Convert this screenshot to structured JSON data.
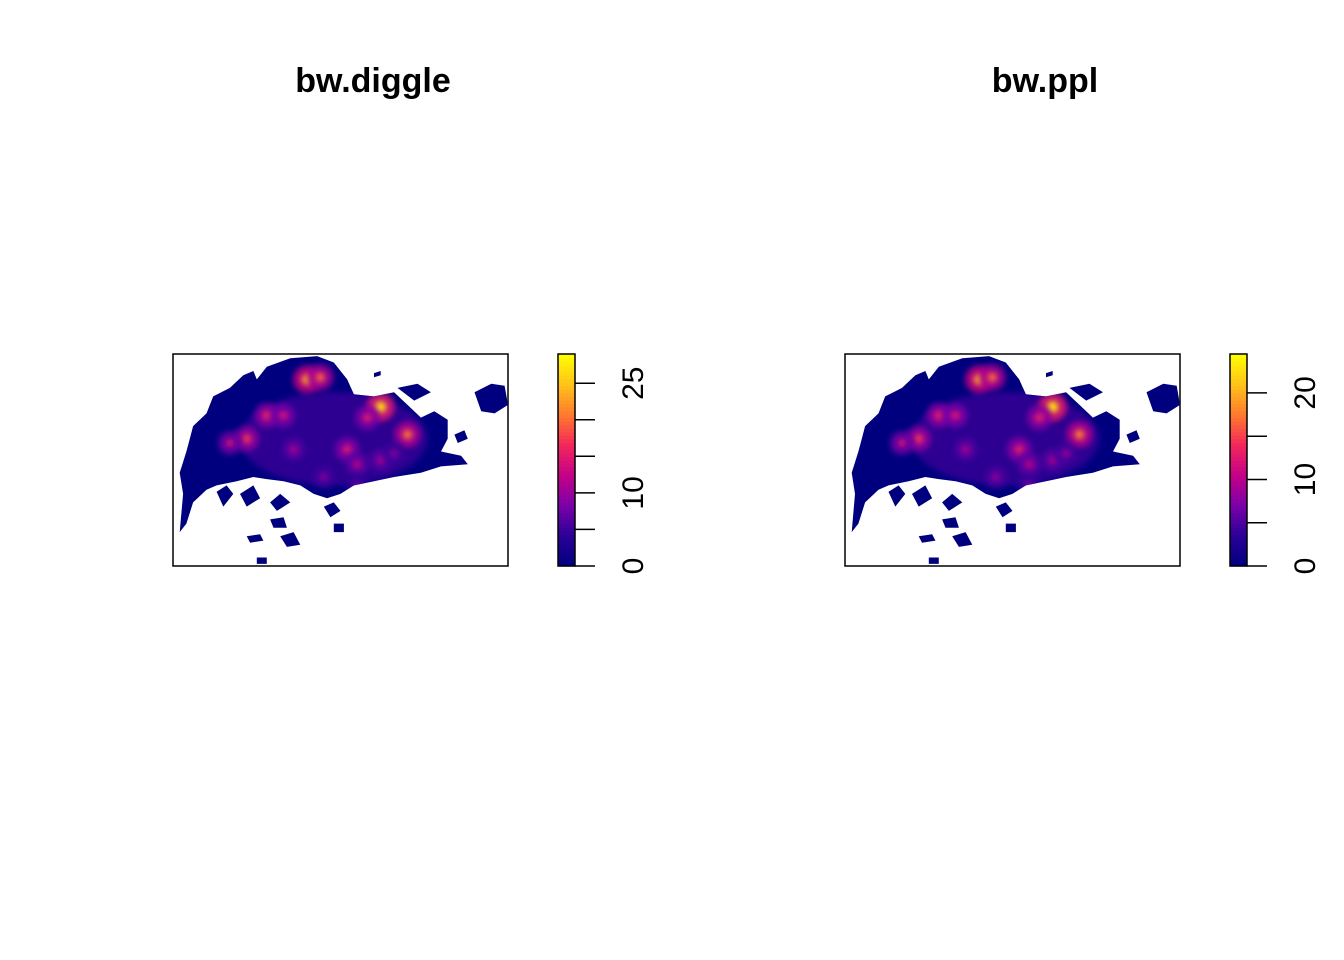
{
  "chart_data": [
    {
      "type": "heatmap",
      "title": "bw.diggle",
      "xlabel": "",
      "ylabel": "",
      "colorbar": {
        "range": [
          0,
          30
        ],
        "major_ticks": [
          0,
          10,
          25
        ],
        "minor_ticks": [
          0,
          5,
          10,
          15,
          20,
          25,
          30
        ],
        "colors": [
          "#00007f",
          "#2a0096",
          "#7a00a8",
          "#c40088",
          "#f3275c",
          "#ff7a2e",
          "#ffc21a",
          "#ffff00"
        ]
      },
      "hotspots": [
        {
          "x": 0.4,
          "y": 0.12,
          "value": 24
        },
        {
          "x": 0.44,
          "y": 0.11,
          "value": 20
        },
        {
          "x": 0.62,
          "y": 0.25,
          "value": 27
        },
        {
          "x": 0.58,
          "y": 0.3,
          "value": 16
        },
        {
          "x": 0.7,
          "y": 0.38,
          "value": 21
        },
        {
          "x": 0.28,
          "y": 0.29,
          "value": 17
        },
        {
          "x": 0.33,
          "y": 0.29,
          "value": 15
        },
        {
          "x": 0.22,
          "y": 0.4,
          "value": 18
        },
        {
          "x": 0.17,
          "y": 0.42,
          "value": 14
        },
        {
          "x": 0.36,
          "y": 0.45,
          "value": 12
        },
        {
          "x": 0.52,
          "y": 0.45,
          "value": 16
        },
        {
          "x": 0.55,
          "y": 0.52,
          "value": 13
        },
        {
          "x": 0.62,
          "y": 0.5,
          "value": 12
        },
        {
          "x": 0.45,
          "y": 0.58,
          "value": 10
        },
        {
          "x": 0.55,
          "y": 0.62,
          "value": 9
        },
        {
          "x": 0.66,
          "y": 0.47,
          "value": 10
        }
      ]
    },
    {
      "type": "heatmap",
      "title": "bw.ppl",
      "xlabel": "",
      "ylabel": "",
      "colorbar": {
        "range": [
          0,
          25
        ],
        "major_ticks": [
          0,
          10,
          20
        ],
        "minor_ticks": [
          0,
          5,
          10,
          15,
          20,
          25
        ],
        "colors": [
          "#00007f",
          "#2a0096",
          "#7a00a8",
          "#c40088",
          "#f3275c",
          "#ff7a2e",
          "#ffc21a",
          "#ffff00"
        ]
      },
      "hotspots": [
        {
          "x": 0.4,
          "y": 0.12,
          "value": 20
        },
        {
          "x": 0.44,
          "y": 0.11,
          "value": 17
        },
        {
          "x": 0.62,
          "y": 0.25,
          "value": 23
        },
        {
          "x": 0.58,
          "y": 0.3,
          "value": 14
        },
        {
          "x": 0.7,
          "y": 0.38,
          "value": 18
        },
        {
          "x": 0.28,
          "y": 0.29,
          "value": 14
        },
        {
          "x": 0.33,
          "y": 0.29,
          "value": 13
        },
        {
          "x": 0.22,
          "y": 0.4,
          "value": 15
        },
        {
          "x": 0.17,
          "y": 0.42,
          "value": 12
        },
        {
          "x": 0.36,
          "y": 0.45,
          "value": 10
        },
        {
          "x": 0.52,
          "y": 0.45,
          "value": 14
        },
        {
          "x": 0.55,
          "y": 0.52,
          "value": 11
        },
        {
          "x": 0.62,
          "y": 0.5,
          "value": 10
        },
        {
          "x": 0.45,
          "y": 0.58,
          "value": 9
        },
        {
          "x": 0.55,
          "y": 0.62,
          "value": 8
        },
        {
          "x": 0.66,
          "y": 0.47,
          "value": 9
        }
      ]
    }
  ]
}
